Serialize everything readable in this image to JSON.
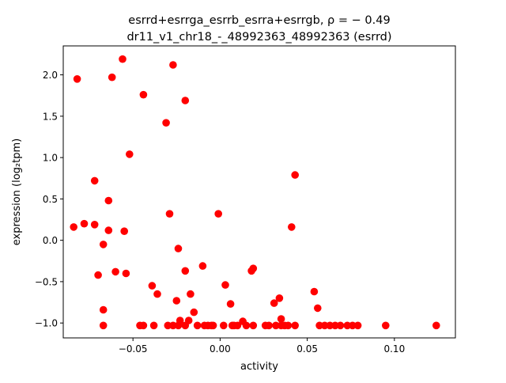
{
  "chart_data": {
    "type": "scatter",
    "title_line1": "esrrd+esrrga_esrrb_esrra+esrrgb, ρ = − 0.49",
    "title_line2": "dr11_v1_chr18_-_48992363_48992363 (esrrd)",
    "xlabel": "activity",
    "ylabel": "expression (log₂tpm)",
    "xlim": [
      -0.09,
      0.135
    ],
    "ylim": [
      -1.18,
      2.35
    ],
    "xticks": [
      -0.05,
      0.0,
      0.05,
      0.1
    ],
    "xtick_labels": [
      "−0.05",
      "0.00",
      "0.05",
      "0.10"
    ],
    "yticks": [
      -1.0,
      -0.5,
      0.0,
      0.5,
      1.0,
      1.5,
      2.0
    ],
    "ytick_labels": [
      "−1.0",
      "−0.5",
      "0.0",
      "0.5",
      "1.0",
      "1.5",
      "2.0"
    ],
    "grid": false,
    "marker_color": "#ff0000",
    "series": [
      {
        "x": [
          -0.082,
          -0.056,
          -0.062,
          -0.044,
          -0.027,
          -0.02,
          -0.031,
          -0.052,
          -0.072,
          -0.064,
          -0.084,
          -0.078,
          -0.072,
          -0.064,
          -0.055,
          -0.067,
          -0.029,
          -0.001,
          -0.024,
          -0.07,
          -0.06,
          -0.054,
          -0.039,
          -0.036,
          -0.02,
          -0.01,
          -0.017,
          -0.025,
          -0.015,
          -0.067,
          -0.067,
          -0.046,
          -0.044,
          -0.038,
          -0.03,
          -0.027,
          -0.024,
          -0.023,
          -0.02,
          -0.018,
          -0.013,
          -0.009,
          -0.007,
          -0.005,
          -0.004,
          0.002,
          0.003,
          0.006,
          0.007,
          0.008,
          0.01,
          0.013,
          0.015,
          0.018,
          0.019,
          0.019,
          0.026,
          0.028,
          0.031,
          0.032,
          0.034,
          0.035,
          0.035,
          0.037,
          0.039,
          0.041,
          0.043,
          0.043,
          0.054,
          0.056,
          0.057,
          0.06,
          0.063,
          0.066,
          0.069,
          0.073,
          0.076,
          0.079,
          0.095,
          0.124
        ],
        "y": [
          1.95,
          2.19,
          1.97,
          1.76,
          2.12,
          1.69,
          1.42,
          1.04,
          0.72,
          0.48,
          0.16,
          0.2,
          0.19,
          0.12,
          0.11,
          -0.05,
          0.32,
          0.32,
          -0.1,
          -0.42,
          -0.38,
          -0.4,
          -0.55,
          -0.65,
          -0.37,
          -0.31,
          -0.65,
          -0.73,
          -0.87,
          -0.84,
          -1.03,
          -1.03,
          -1.03,
          -1.03,
          -1.03,
          -1.03,
          -1.03,
          -0.97,
          -1.03,
          -0.97,
          -1.03,
          -1.03,
          -1.03,
          -1.03,
          -1.03,
          -1.03,
          -0.54,
          -0.77,
          -1.03,
          -1.03,
          -1.03,
          -0.98,
          -1.03,
          -0.37,
          -0.34,
          -1.03,
          -1.03,
          -1.03,
          -0.76,
          -1.03,
          -0.7,
          -0.95,
          -1.03,
          -1.03,
          -1.03,
          0.16,
          0.79,
          -1.03,
          -0.62,
          -0.82,
          -1.03,
          -1.03,
          -1.03,
          -1.03,
          -1.03,
          -1.03,
          -1.03,
          -1.03,
          -1.03,
          -1.03
        ]
      }
    ]
  }
}
